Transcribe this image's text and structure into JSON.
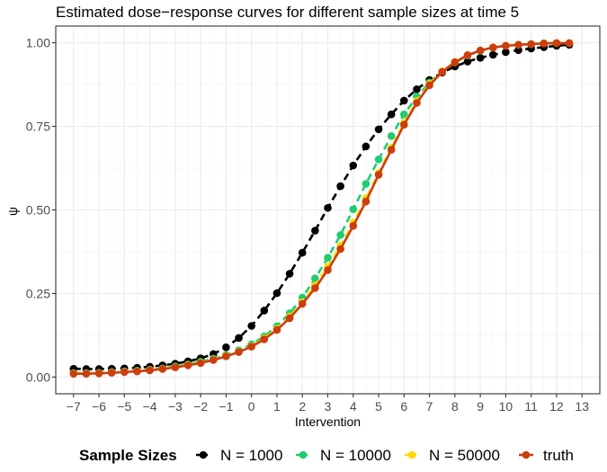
{
  "chart_data": {
    "type": "line",
    "title": "Estimated dose−response curves for different sample sizes at time 5",
    "xlabel": "Intervention",
    "ylabel": "ψ",
    "xlim": [
      -7.7,
      13.7
    ],
    "ylim": [
      -0.05,
      1.05
    ],
    "x_ticks": [
      -7,
      -6,
      -5,
      -4,
      -3,
      -2,
      -1,
      0,
      1,
      2,
      3,
      4,
      5,
      6,
      7,
      8,
      9,
      10,
      11,
      12,
      13
    ],
    "x_tick_labels": [
      "−7",
      "−6",
      "−5",
      "−4",
      "−3",
      "−2",
      "−1",
      "0",
      "1",
      "2",
      "3",
      "4",
      "5",
      "6",
      "7",
      "8",
      "9",
      "10",
      "11",
      "12",
      "13"
    ],
    "y_ticks": [
      0,
      0.25,
      0.5,
      0.75,
      1.0
    ],
    "y_tick_labels": [
      "0.00",
      "0.25",
      "0.50",
      "0.75",
      "1.00"
    ],
    "legend_title": "Sample Sizes",
    "legend_position": "bottom",
    "x": [
      -7,
      -6.5,
      -6,
      -5.5,
      -5,
      -4.5,
      -4,
      -3.5,
      -3,
      -2.5,
      -2,
      -1.5,
      -1,
      -0.5,
      0,
      0.5,
      1,
      1.5,
      2,
      2.5,
      3,
      3.5,
      4,
      4.5,
      5,
      5.5,
      6,
      6.5,
      7,
      7.5,
      8,
      8.5,
      9,
      9.5,
      10,
      10.5,
      11,
      11.5,
      12,
      12.5
    ],
    "series": [
      {
        "name": "N = 1000",
        "color": "#000000",
        "dashed": true,
        "values": [
          0.025,
          0.024,
          0.024,
          0.025,
          0.026,
          0.028,
          0.031,
          0.035,
          0.04,
          0.047,
          0.056,
          0.069,
          0.089,
          0.117,
          0.153,
          0.199,
          0.251,
          0.309,
          0.372,
          0.438,
          0.506,
          0.571,
          0.633,
          0.69,
          0.741,
          0.786,
          0.827,
          0.861,
          0.889,
          0.911,
          0.929,
          0.944,
          0.955,
          0.964,
          0.972,
          0.978,
          0.983,
          0.987,
          0.991,
          0.994
        ]
      },
      {
        "name": "N = 10000",
        "color": "#1fcc70",
        "dashed": true,
        "values": [
          0.012,
          0.012,
          0.013,
          0.015,
          0.017,
          0.019,
          0.022,
          0.026,
          0.032,
          0.038,
          0.046,
          0.055,
          0.066,
          0.08,
          0.098,
          0.122,
          0.152,
          0.191,
          0.238,
          0.295,
          0.357,
          0.425,
          0.502,
          0.578,
          0.651,
          0.721,
          0.786,
          0.839,
          0.881,
          0.914,
          0.941,
          0.962,
          0.976,
          0.985,
          0.991,
          0.994,
          0.996,
          0.998,
          0.999,
          0.999
        ]
      },
      {
        "name": "N = 50000",
        "color": "#ffd600",
        "dashed": true,
        "values": [
          0.011,
          0.011,
          0.012,
          0.014,
          0.016,
          0.018,
          0.021,
          0.025,
          0.03,
          0.036,
          0.043,
          0.052,
          0.063,
          0.076,
          0.093,
          0.116,
          0.145,
          0.181,
          0.224,
          0.274,
          0.33,
          0.393,
          0.462,
          0.535,
          0.61,
          0.686,
          0.76,
          0.826,
          0.877,
          0.915,
          0.943,
          0.963,
          0.977,
          0.986,
          0.991,
          0.994,
          0.996,
          0.998,
          0.999,
          0.999
        ]
      },
      {
        "name": "truth",
        "color": "#cc3d0f",
        "dashed": false,
        "values": [
          0.01,
          0.01,
          0.011,
          0.013,
          0.015,
          0.017,
          0.02,
          0.024,
          0.029,
          0.035,
          0.042,
          0.051,
          0.062,
          0.075,
          0.091,
          0.113,
          0.141,
          0.176,
          0.219,
          0.266,
          0.32,
          0.383,
          0.452,
          0.525,
          0.605,
          0.68,
          0.755,
          0.82,
          0.873,
          0.913,
          0.942,
          0.963,
          0.977,
          0.986,
          0.991,
          0.994,
          0.996,
          0.998,
          0.999,
          0.999
        ]
      }
    ]
  }
}
